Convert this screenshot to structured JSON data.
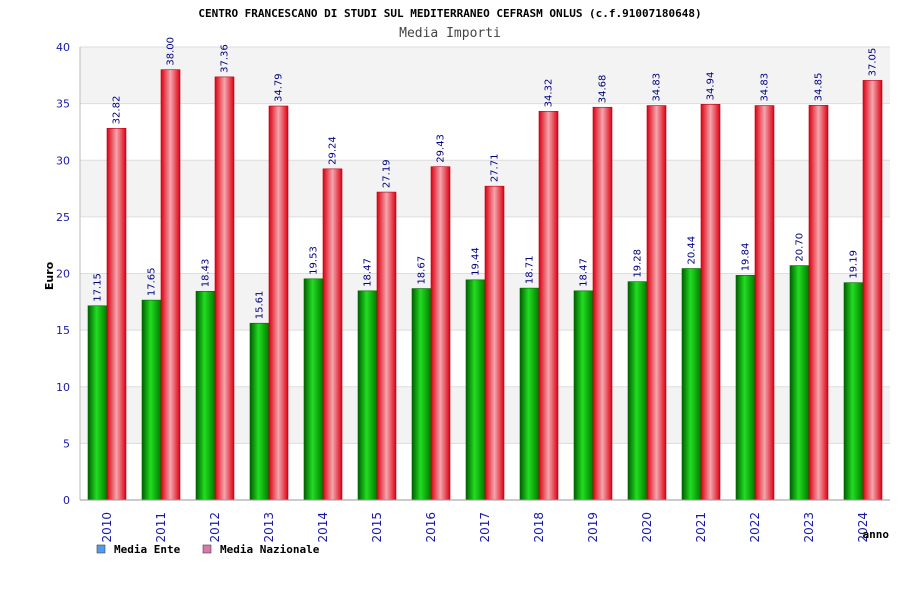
{
  "chart_data": {
    "type": "bar",
    "title": "CENTRO FRANCESCANO DI STUDI SUL MEDITERRANEO CEFRASM ONLUS (c.f.91007180648)",
    "subtitle": "Media Importi",
    "xlabel": "anno",
    "ylabel": "Euro",
    "ylim": [
      0,
      40
    ],
    "yticks": [
      0,
      5,
      10,
      15,
      20,
      25,
      30,
      35,
      40
    ],
    "grid": true,
    "legend_position": "bottom-left",
    "categories": [
      "2010",
      "2011",
      "2012",
      "2013",
      "2014",
      "2015",
      "2016",
      "2017",
      "2018",
      "2019",
      "2020",
      "2021",
      "2022",
      "2023",
      "2024"
    ],
    "series": [
      {
        "name": "Media Ente",
        "color": "#00aa00",
        "legend_color": "#5599ee",
        "values": [
          17.15,
          17.65,
          18.43,
          15.61,
          19.53,
          18.47,
          18.67,
          19.44,
          18.71,
          18.47,
          19.28,
          20.44,
          19.84,
          20.7,
          19.19
        ],
        "labels": [
          "17.15",
          "17.65",
          "18.43",
          "15.61",
          "19.53",
          "18.47",
          "18.67",
          "19.44",
          "18.71",
          "18.47",
          "19.28",
          "20.44",
          "19.84",
          "20.70",
          "19.19"
        ]
      },
      {
        "name": "Media Nazionale",
        "color": "#ee1122",
        "legend_color": "#dd77aa",
        "values": [
          32.82,
          38.0,
          37.36,
          34.79,
          29.24,
          27.19,
          29.43,
          27.71,
          34.32,
          34.68,
          34.83,
          34.94,
          34.83,
          34.85,
          37.05
        ],
        "labels": [
          "32.82",
          "38.00",
          "37.36",
          "34.79",
          "29.24",
          "27.19",
          "29.43",
          "27.71",
          "34.32",
          "34.68",
          "34.83",
          "34.94",
          "34.83",
          "34.85",
          "37.05"
        ]
      }
    ]
  }
}
